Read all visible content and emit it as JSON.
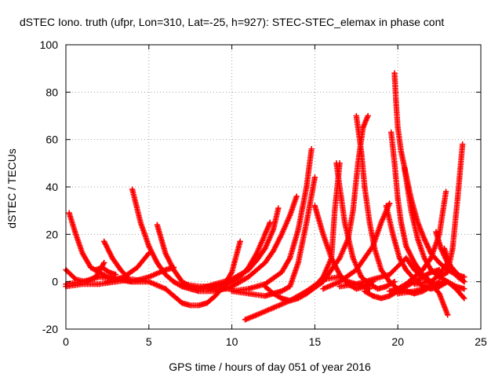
{
  "chart_data": {
    "type": "scatter",
    "title": "dSTEC Iono. truth (ufpr, Lon=310, Lat=-25, h=927): STEC-STEC_elemax in phase cont",
    "xlabel": "GPS time / hours of day 051 of year 2016",
    "ylabel": "dSTEC  / TECUs",
    "xlim": [
      0,
      25
    ],
    "ylim": [
      -20,
      100
    ],
    "x_ticks": [
      "0",
      "5",
      "10",
      "15",
      "20",
      "25"
    ],
    "y_ticks": [
      "-20",
      "0",
      "20",
      "40",
      "60",
      "80",
      "100"
    ],
    "grid": true,
    "marker": "+",
    "color": "#ff0000",
    "series": [
      {
        "x": [
          0,
          0.6,
          1.2,
          1.8,
          2.3
        ],
        "y": [
          5,
          1,
          0,
          2,
          8
        ]
      },
      {
        "x": [
          0.2,
          0.6,
          1.0,
          1.5,
          2.0,
          2.5,
          3.0,
          3.5,
          4.0
        ],
        "y": [
          29,
          20,
          12,
          6,
          4,
          2,
          1,
          1,
          0
        ]
      },
      {
        "x": [
          0,
          1,
          2,
          3,
          4,
          5,
          6,
          6.5
        ],
        "y": [
          -1,
          0,
          2,
          1,
          0,
          2,
          5,
          6
        ]
      },
      {
        "x": [
          0,
          1,
          2,
          3,
          4,
          5
        ],
        "y": [
          -2,
          -1,
          -1,
          0,
          1,
          0
        ]
      },
      {
        "x": [
          2.3,
          2.8,
          3.3,
          3.7
        ],
        "y": [
          17,
          10,
          5,
          2
        ]
      },
      {
        "x": [
          1.8,
          2.2,
          2.6,
          3.0
        ],
        "y": [
          5,
          6,
          4,
          3
        ]
      },
      {
        "x": [
          2.5,
          3.5,
          4.3,
          5.0
        ],
        "y": [
          0,
          2,
          6,
          12
        ]
      },
      {
        "x": [
          4.0,
          4.5,
          5.0,
          5.5,
          6.0,
          6.5,
          7.0,
          7.5,
          8.0,
          8.5,
          9.0,
          9.5,
          10.0
        ],
        "y": [
          39,
          25,
          15,
          8,
          3,
          0,
          -2,
          -3,
          -4,
          -4,
          -4,
          -3,
          -3
        ]
      },
      {
        "x": [
          5.5,
          6.0,
          6.5,
          7.0,
          7.5,
          8.0,
          8.5,
          9.0,
          9.5,
          10.0
        ],
        "y": [
          24,
          12,
          5,
          0,
          -2,
          -3,
          -3,
          -2,
          -1,
          0
        ]
      },
      {
        "x": [
          3.0,
          4.0,
          5.0,
          6.0,
          6.5,
          7.0,
          7.5,
          8.0,
          8.5,
          9.0,
          9.5,
          10.0,
          10.5
        ],
        "y": [
          1,
          0,
          0,
          -3,
          -6,
          -9,
          -10,
          -10,
          -9,
          -6,
          -2,
          4,
          17
        ]
      },
      {
        "x": [
          7.0,
          8.0,
          9.0,
          10.0,
          10.5,
          11.0,
          11.5,
          12.0,
          12.3
        ],
        "y": [
          -1,
          -2,
          -2,
          0,
          2,
          6,
          12,
          20,
          25
        ]
      },
      {
        "x": [
          8.0,
          9.0,
          10.0,
          11.0,
          11.5,
          12.0,
          12.5,
          12.8
        ],
        "y": [
          -3,
          -1,
          1,
          5,
          9,
          14,
          22,
          31
        ]
      },
      {
        "x": [
          9.0,
          10.0,
          11.0,
          12.0,
          12.5,
          13.0,
          13.5,
          13.9
        ],
        "y": [
          -4,
          -2,
          2,
          8,
          13,
          20,
          28,
          36
        ]
      },
      {
        "x": [
          10.0,
          11.0,
          12.0,
          13.0,
          13.5,
          14.0,
          14.5,
          14.8
        ],
        "y": [
          -4,
          -3,
          -1,
          4,
          10,
          22,
          40,
          56
        ]
      },
      {
        "x": [
          10.0,
          11.0,
          12.0,
          12.5,
          13.0,
          13.5,
          14.0,
          14.5,
          15.0
        ],
        "y": [
          -4,
          -5,
          -6,
          -5,
          -4,
          -2,
          8,
          25,
          44
        ]
      },
      {
        "x": [
          12.0,
          12.5,
          13.0,
          13.5,
          14.0,
          14.5,
          15.0,
          15.5,
          16.0,
          16.2,
          16.5
        ],
        "y": [
          -2,
          -5,
          -7,
          -8,
          -7,
          -5,
          -2,
          2,
          10,
          30,
          50
        ]
      },
      {
        "x": [
          10.8,
          11.5,
          12.5,
          13.5,
          14.5,
          15.5,
          16.5,
          17.0,
          17.5,
          18.0,
          18.3
        ],
        "y": [
          -16,
          -14,
          -11,
          -8,
          -4,
          1,
          2,
          0,
          -1,
          -2,
          -3
        ]
      },
      {
        "x": [
          15.0,
          15.5,
          16.0,
          16.5,
          17.0,
          17.5,
          18.0,
          18.5
        ],
        "y": [
          32,
          20,
          10,
          3,
          -1,
          -3,
          -2,
          0
        ]
      },
      {
        "x": [
          16.3,
          16.8,
          17.3,
          17.8,
          18.3,
          18.8,
          19.3,
          19.8
        ],
        "y": [
          50,
          25,
          10,
          2,
          -1,
          -3,
          -2,
          0
        ]
      },
      {
        "x": [
          14.5,
          15.5,
          16.5,
          17.0,
          17.3,
          17.6,
          17.9,
          18.2
        ],
        "y": [
          -5,
          0,
          10,
          18,
          30,
          50,
          65,
          70
        ]
      },
      {
        "x": [
          17.5,
          17.8,
          18.0,
          18.3,
          18.6,
          19.0,
          19.5,
          20.0,
          20.5,
          21.0,
          21.5,
          22.0,
          22.5
        ],
        "y": [
          70,
          55,
          40,
          25,
          14,
          5,
          0,
          -3,
          -4,
          -5,
          -4,
          -2,
          0
        ]
      },
      {
        "x": [
          15.5,
          16.5,
          17.5,
          18.5,
          19.0,
          19.5
        ],
        "y": [
          -3,
          0,
          5,
          15,
          25,
          33
        ]
      },
      {
        "x": [
          18.0,
          18.5,
          19.0,
          19.5,
          20.0,
          20.5,
          21.0,
          21.5,
          22.0,
          22.5
        ],
        "y": [
          -4,
          -6,
          -7,
          -6,
          -4,
          -2,
          0,
          2,
          4,
          5
        ]
      },
      {
        "x": [
          19.3,
          19.7,
          20.1,
          20.5,
          21.0,
          21.5,
          22.0,
          22.5,
          23.0
        ],
        "y": [
          32,
          20,
          10,
          5,
          1,
          -2,
          -3,
          -2,
          0
        ]
      },
      {
        "x": [
          19.6,
          19.8,
          20.0,
          20.2,
          20.5,
          21.0,
          21.5,
          22.0,
          22.5
        ],
        "y": [
          63,
          50,
          35,
          25,
          15,
          8,
          3,
          0,
          -2
        ]
      },
      {
        "x": [
          19.8,
          19.9,
          20.0,
          20.2,
          20.5,
          20.8,
          21.2,
          21.6,
          22.0,
          22.5,
          23.0,
          23.5,
          24.0
        ],
        "y": [
          88,
          75,
          65,
          55,
          45,
          35,
          25,
          18,
          12,
          8,
          5,
          3,
          2
        ]
      },
      {
        "x": [
          20.4,
          20.8,
          21.2,
          21.6,
          22.0,
          22.5,
          23.0,
          23.5,
          24.0
        ],
        "y": [
          48,
          30,
          18,
          10,
          5,
          2,
          0,
          -2,
          -3
        ]
      },
      {
        "x": [
          16.5,
          17.5,
          18.5,
          19.5,
          20.5,
          21.0,
          21.5,
          22.0,
          22.5,
          23.0
        ],
        "y": [
          -2,
          -1,
          1,
          3,
          10,
          5,
          2,
          -1,
          -5,
          -14
        ]
      },
      {
        "x": [
          19.5,
          20.0,
          20.5,
          21.0,
          21.5,
          22.0,
          22.5,
          22.9
        ],
        "y": [
          -4,
          -3,
          -1,
          2,
          5,
          10,
          20,
          38
        ]
      },
      {
        "x": [
          20.0,
          21.0,
          22.0,
          22.5,
          23.0,
          23.5,
          24.0
        ],
        "y": [
          -5,
          -4,
          -2,
          -1,
          0,
          -3,
          -7
        ]
      },
      {
        "x": [
          22.0,
          22.5,
          23.0,
          23.3,
          23.6,
          23.9
        ],
        "y": [
          5,
          2,
          4,
          14,
          35,
          58
        ]
      },
      {
        "x": [
          22.8,
          23.2,
          23.6,
          24.0
        ],
        "y": [
          14,
          6,
          2,
          0
        ]
      },
      {
        "x": [
          22.3,
          22.6,
          23.0
        ],
        "y": [
          21,
          14,
          8
        ]
      },
      {
        "x": [
          21.0,
          22.0,
          22.5,
          23.0,
          23.5,
          24.0
        ],
        "y": [
          -1,
          0,
          3,
          8,
          4,
          0
        ]
      }
    ]
  }
}
